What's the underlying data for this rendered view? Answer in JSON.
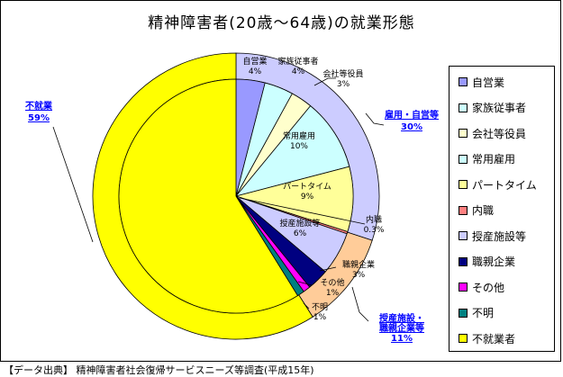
{
  "chart_data": {
    "type": "pie",
    "title": "精神障害者(20歳～64歳)の就業形態",
    "inner": {
      "slices": [
        {
          "name": "自営業",
          "value": 4,
          "label_lines": [
            "自営業",
            "4%"
          ],
          "color": "#9999ff"
        },
        {
          "name": "家族従事者",
          "value": 4,
          "label_lines": [
            "家族従事者",
            "4%"
          ],
          "color": "#ccffff"
        },
        {
          "name": "会社等役員",
          "value": 3,
          "label_lines": [
            "会社等役員",
            "3%"
          ],
          "color": "#ffffcc"
        },
        {
          "name": "常用雇用",
          "value": 10,
          "label_lines": [
            "常用雇用",
            "10%"
          ],
          "color": "#ccffff"
        },
        {
          "name": "パートタイム",
          "value": 9,
          "label_lines": [
            "パートタイム",
            "9%"
          ],
          "color": "#ffff99"
        },
        {
          "name": "内職",
          "value": 0.3,
          "label_lines": [
            "内職",
            "0.3%"
          ],
          "color": "#ff8080"
        },
        {
          "name": "授産施設等",
          "value": 6,
          "label_lines": [
            "授産施設等",
            "6%"
          ],
          "color": "#ccccff"
        },
        {
          "name": "職親企業",
          "value": 3,
          "label_lines": [
            "職親企業",
            "3%"
          ],
          "color": "#000080"
        },
        {
          "name": "その他",
          "value": 1,
          "label_lines": [
            "その他",
            "1%"
          ],
          "color": "#ff00ff"
        },
        {
          "name": "不明",
          "value": 1,
          "label_lines": [
            "不明",
            "1%"
          ],
          "color": "#008080"
        },
        {
          "name": "不就業者",
          "value": 59,
          "label_lines": [],
          "color": "#ffff00"
        }
      ]
    },
    "outer": {
      "groups": [
        {
          "name": "雇用・自営等",
          "value": 30,
          "label_lines": [
            "雇用・自営等",
            "30%"
          ],
          "color": "#ccccff"
        },
        {
          "name": "授産施設・職親企業等",
          "value": 11,
          "label_lines": [
            "授産施設・",
            "職親企業等",
            "11%"
          ],
          "color": "#ffcc99"
        },
        {
          "name": "不就業",
          "value": 59,
          "label_lines": [
            "不就業",
            "59%"
          ],
          "color": "#ffff00"
        }
      ]
    },
    "legend": {
      "placement": "right",
      "entries": [
        {
          "label": "自営業",
          "color": "#9999ff"
        },
        {
          "label": "家族従事者",
          "color": "#ccffff"
        },
        {
          "label": "会社等役員",
          "color": "#ffffcc"
        },
        {
          "label": "常用雇用",
          "color": "#ccffff"
        },
        {
          "label": "パートタイム",
          "color": "#ffff99"
        },
        {
          "label": "内職",
          "color": "#ff8080"
        },
        {
          "label": "授産施設等",
          "color": "#ccccff"
        },
        {
          "label": "職親企業",
          "color": "#000080"
        },
        {
          "label": "その他",
          "color": "#ff00ff"
        },
        {
          "label": "不明",
          "color": "#008080"
        },
        {
          "label": "不就業者",
          "color": "#ffff00"
        }
      ]
    },
    "group_label_color": "#0000ff"
  },
  "source": "【データ出典】 精神障害者社会復帰サービスニーズ等調査(平成15年)"
}
